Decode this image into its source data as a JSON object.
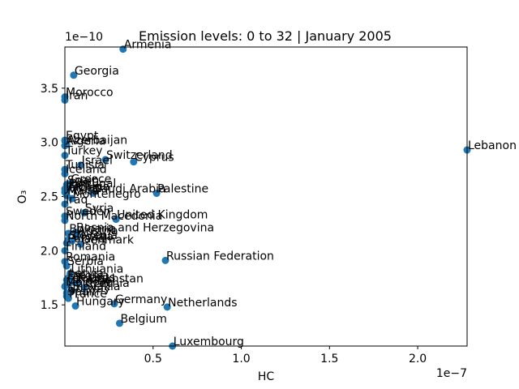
{
  "chart_data": {
    "type": "scatter",
    "title": "Emission levels: 0 to 32 | January 2005",
    "xlabel": "HC",
    "ylabel": "O₃",
    "x_scale_label": "1e−7",
    "y_scale_label": "1e−10",
    "x_multiplier": 1e-07,
    "y_multiplier": 1e-10,
    "xlim": [
      0.0,
      2.28
    ],
    "ylim": [
      1.12,
      3.88
    ],
    "xticks": [
      0.5,
      1.0,
      1.5,
      2.0
    ],
    "xtick_labels": [
      "0.5",
      "1.0",
      "1.5",
      "2.0"
    ],
    "yticks": [
      1.5,
      2.0,
      2.5,
      3.0,
      3.5
    ],
    "ytick_labels": [
      "1.5",
      "2.0",
      "2.5",
      "3.0",
      "3.5"
    ],
    "marker_color": "#1f77b4",
    "grid": false,
    "legend": "none",
    "points": [
      {
        "label": "Armenia",
        "x": 0.33,
        "y": 3.86
      },
      {
        "label": "Georgia",
        "x": 0.05,
        "y": 3.62
      },
      {
        "label": "Morocco",
        "x": 0.0,
        "y": 3.42
      },
      {
        "label": "Iran",
        "x": 0.0,
        "y": 3.39
      },
      {
        "label": "Egypt",
        "x": 0.0,
        "y": 3.02
      },
      {
        "label": "Azerbaijan",
        "x": 0.01,
        "y": 2.98
      },
      {
        "label": "Algeria",
        "x": 0.0,
        "y": 2.97
      },
      {
        "label": "Turkey",
        "x": 0.0,
        "y": 2.88
      },
      {
        "label": "Switzerland",
        "x": 0.23,
        "y": 2.84
      },
      {
        "label": "Cyprus",
        "x": 0.39,
        "y": 2.82
      },
      {
        "label": "Israel",
        "x": 0.09,
        "y": 2.79
      },
      {
        "label": "Tunisia",
        "x": 0.0,
        "y": 2.75
      },
      {
        "label": "Iceland",
        "x": 0.0,
        "y": 2.71
      },
      {
        "label": "Greece",
        "x": 0.03,
        "y": 2.62
      },
      {
        "label": "Spain",
        "x": 0.01,
        "y": 2.61
      },
      {
        "label": "Portugal",
        "x": 0.02,
        "y": 2.58
      },
      {
        "label": "Italy",
        "x": 0.0,
        "y": 2.57
      },
      {
        "label": "Albania",
        "x": 0.01,
        "y": 2.55
      },
      {
        "label": "Jordan",
        "x": 0.0,
        "y": 2.54
      },
      {
        "label": "Saudi Arabia",
        "x": 0.16,
        "y": 2.53
      },
      {
        "label": "Palestine",
        "x": 0.52,
        "y": 2.53
      },
      {
        "label": "Malta",
        "x": 0.01,
        "y": 2.51
      },
      {
        "label": "Montenegro",
        "x": 0.04,
        "y": 2.48
      },
      {
        "label": "Iraq",
        "x": 0.0,
        "y": 2.43
      },
      {
        "label": "Syria",
        "x": 0.11,
        "y": 2.35
      },
      {
        "label": "Sweden",
        "x": 0.0,
        "y": 2.32
      },
      {
        "label": "United Kingdom",
        "x": 0.29,
        "y": 2.29
      },
      {
        "label": "North Macedonia",
        "x": 0.0,
        "y": 2.28
      },
      {
        "label": "Bosnia and Herzegovina",
        "x": 0.06,
        "y": 2.17
      },
      {
        "label": "Bulgaria",
        "x": 0.02,
        "y": 2.16
      },
      {
        "label": "Austria",
        "x": 0.07,
        "y": 2.14
      },
      {
        "label": "Slovenia",
        "x": 0.02,
        "y": 2.1
      },
      {
        "label": "Croatia",
        "x": 0.04,
        "y": 2.09
      },
      {
        "label": "Poland",
        "x": 0.01,
        "y": 2.07
      },
      {
        "label": "Denmark",
        "x": 0.09,
        "y": 2.06
      },
      {
        "label": "Finland",
        "x": 0.0,
        "y": 2.0
      },
      {
        "label": "Russian Federation",
        "x": 0.57,
        "y": 1.91
      },
      {
        "label": "Romania",
        "x": 0.0,
        "y": 1.9
      },
      {
        "label": "Serbia",
        "x": 0.01,
        "y": 1.86
      },
      {
        "label": "Lithuania",
        "x": 0.03,
        "y": 1.79
      },
      {
        "label": "Latvia",
        "x": 0.02,
        "y": 1.75
      },
      {
        "label": "Estonia",
        "x": 0.01,
        "y": 1.73
      },
      {
        "label": "Belarus",
        "x": 0.04,
        "y": 1.71
      },
      {
        "label": "Ukraine",
        "x": 0.01,
        "y": 1.69
      },
      {
        "label": "Moldova",
        "x": 0.0,
        "y": 1.67
      },
      {
        "label": "Kazakhstan",
        "x": 0.07,
        "y": 1.7
      },
      {
        "label": "Czechia",
        "x": 0.11,
        "y": 1.66
      },
      {
        "label": "Slovakia",
        "x": 0.04,
        "y": 1.63
      },
      {
        "label": "Norway",
        "x": 0.01,
        "y": 1.61
      },
      {
        "label": "Spain",
        "x": 0.01,
        "y": 1.58
      },
      {
        "label": "France",
        "x": 0.02,
        "y": 1.56
      },
      {
        "label": "Germany",
        "x": 0.28,
        "y": 1.51
      },
      {
        "label": "Hungary",
        "x": 0.06,
        "y": 1.49
      },
      {
        "label": "Netherlands",
        "x": 0.58,
        "y": 1.48
      },
      {
        "label": "Belgium",
        "x": 0.31,
        "y": 1.33
      },
      {
        "label": "Luxembourg",
        "x": 0.61,
        "y": 1.12
      },
      {
        "label": "Lebanon",
        "x": 2.28,
        "y": 2.93
      }
    ]
  }
}
